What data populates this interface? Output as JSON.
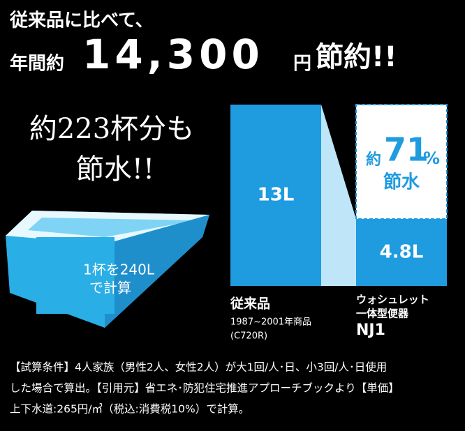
{
  "header": {
    "line1": "従来品に比べて、",
    "prefix": "年間約",
    "amount": "14,300",
    "unit": "円",
    "suffix": "節約!!"
  },
  "left": {
    "line1": "約223杯分も",
    "line2": "節水!!"
  },
  "bathtub": {
    "line1": "1杯を240L",
    "line2": "で計算"
  },
  "chart_data": {
    "type": "bar",
    "categories": [
      "従来品",
      "NJ1"
    ],
    "category_notes": [
      [
        "1987~2001年商品",
        "(C720R)"
      ],
      [
        "ウォシュレット",
        "一体型便器"
      ]
    ],
    "values": [
      13,
      4.8
    ],
    "value_labels": [
      "13L",
      "4.8L"
    ],
    "color": "#1f9be0",
    "ylim": [
      0,
      13
    ],
    "annotation": {
      "prefix": "約",
      "value": 71,
      "unit": "%",
      "label": "節水"
    }
  },
  "footnote": {
    "lines": [
      "【試算条件】4人家族（男性2人、女性2人）が大1回/人･日、小3回/人･日使用",
      "した場合で算出。【引用元】省エネ･防犯住宅推進アプローチブックより【単価】",
      "上下水道:265円/㎥（税込:消費税10%）で計算。"
    ]
  }
}
